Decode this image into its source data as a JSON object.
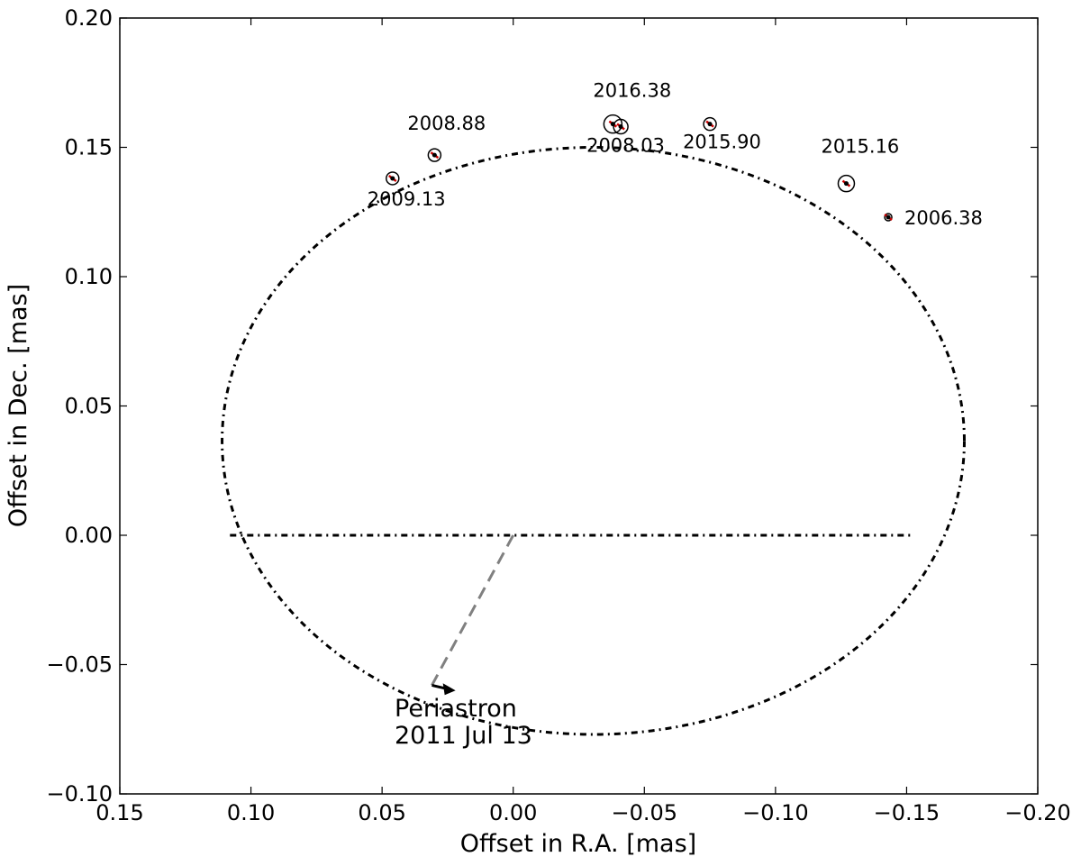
{
  "chart_data": {
    "type": "scatter",
    "title": "",
    "xlabel": "Offset in R.A. [mas]",
    "ylabel": "Offset in Dec. [mas]",
    "xlim": [
      0.15,
      -0.2
    ],
    "ylim": [
      -0.1,
      0.2
    ],
    "x_inverted": true,
    "xticks": [
      0.15,
      0.1,
      0.05,
      0.0,
      -0.05,
      -0.1,
      -0.15,
      -0.2
    ],
    "xtick_labels": [
      "0.15",
      "0.10",
      "0.05",
      "0.00",
      "−0.05",
      "−0.10",
      "−0.15",
      "−0.20"
    ],
    "yticks": [
      -0.1,
      -0.05,
      0.0,
      0.05,
      0.1,
      0.15,
      0.2
    ],
    "ytick_labels": [
      "−0.10",
      "−0.05",
      "0.00",
      "0.05",
      "0.10",
      "0.15",
      "0.20"
    ],
    "grid": false,
    "orbit": {
      "style": "dash-dot",
      "color": "#000000",
      "semi_major_a": 0.1415,
      "semi_minor_b": 0.1135,
      "center": [
        -0.0305,
        0.0365
      ],
      "line_of_nodes": [
        [
          0.108,
          0.0
        ],
        [
          -0.153,
          0.0
        ]
      ]
    },
    "points": [
      {
        "label": "2009.13",
        "x": 0.046,
        "y": 0.138
      },
      {
        "label": "2008.88",
        "x": 0.03,
        "y": 0.147
      },
      {
        "label": "2016.38",
        "x": -0.038,
        "y": 0.159
      },
      {
        "label": "2008.03",
        "x": -0.041,
        "y": 0.158
      },
      {
        "label": "2015.90",
        "x": -0.075,
        "y": 0.159
      },
      {
        "label": "2015.16",
        "x": -0.127,
        "y": 0.136
      },
      {
        "label": "2006.38",
        "x": -0.143,
        "y": 0.123
      }
    ],
    "residual_color": "#cc0000",
    "periastron": {
      "label_line1": "Periastron",
      "label_line2": "2011 Jul 13",
      "from": [
        0.0,
        0.0
      ],
      "to": [
        0.031,
        -0.058
      ],
      "arrow_to": [
        0.022,
        -0.06
      ],
      "line_color": "#808080"
    }
  }
}
